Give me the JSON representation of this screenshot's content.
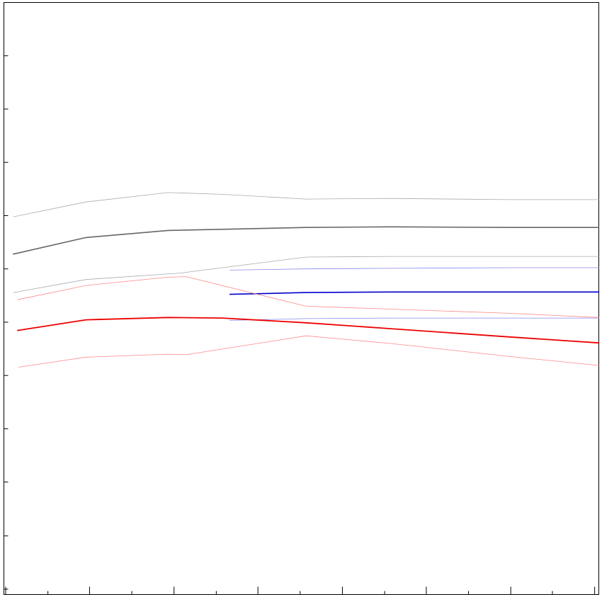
{
  "chart_data": {
    "type": "line",
    "title": "",
    "xlabel": "",
    "ylabel": "",
    "grid": false,
    "legend": "none",
    "xlim": [
      0,
      1
    ],
    "ylim": [
      0,
      1
    ],
    "x_major_ticks": [
      0.003,
      0.144,
      0.286,
      0.427,
      0.569,
      0.71,
      0.852,
      0.993
    ],
    "x_minor_ticks": [
      0.074,
      0.215,
      0.357,
      0.498,
      0.64,
      0.781,
      0.922
    ],
    "y_ticks": [
      0.009,
      0.099,
      0.19,
      0.28,
      0.37,
      0.46,
      0.55,
      0.64,
      0.73,
      0.82,
      0.91
    ],
    "series": [
      {
        "color": "#aaaaaa",
        "width": 0.8,
        "x": [
          0.016,
          0.138,
          0.276,
          0.367,
          0.508,
          0.65,
          0.85,
          1.0
        ],
        "y": [
          0.638,
          0.663,
          0.679,
          0.676,
          0.668,
          0.669,
          0.667,
          0.667
        ]
      },
      {
        "color": "#666666",
        "width": 1.6,
        "x": [
          0.016,
          0.138,
          0.276,
          0.508,
          0.65,
          0.85,
          1.0
        ],
        "y": [
          0.575,
          0.603,
          0.615,
          0.62,
          0.621,
          0.62,
          0.62
        ]
      },
      {
        "color": "#aaaaaa",
        "width": 0.8,
        "x": [
          0.016,
          0.138,
          0.296,
          0.508,
          0.65,
          0.85,
          1.0
        ],
        "y": [
          0.51,
          0.532,
          0.543,
          0.57,
          0.571,
          0.571,
          0.571
        ]
      },
      {
        "color": "#8888ee",
        "width": 0.8,
        "x": [
          0.38,
          0.508,
          0.65,
          0.85,
          1.0
        ],
        "y": [
          0.548,
          0.55,
          0.551,
          0.552,
          0.552
        ]
      },
      {
        "color": "#0000cc",
        "width": 1.6,
        "x": [
          0.38,
          0.508,
          0.65,
          0.85,
          1.0
        ],
        "y": [
          0.507,
          0.51,
          0.511,
          0.511,
          0.511
        ]
      },
      {
        "color": "#8888ee",
        "width": 0.8,
        "x": [
          0.38,
          0.508,
          0.65,
          0.85,
          1.0
        ],
        "y": [
          0.463,
          0.466,
          0.467,
          0.467,
          0.467
        ]
      },
      {
        "color": "#ff8888",
        "width": 0.8,
        "x": [
          0.023,
          0.138,
          0.276,
          0.306,
          0.508,
          0.65,
          0.85,
          1.0
        ],
        "y": [
          0.498,
          0.522,
          0.536,
          0.537,
          0.487,
          0.482,
          0.475,
          0.468
        ]
      },
      {
        "color": "#ee0000",
        "width": 1.8,
        "x": [
          0.023,
          0.138,
          0.276,
          0.367,
          0.508,
          0.65,
          0.85,
          1.0
        ],
        "y": [
          0.446,
          0.464,
          0.468,
          0.467,
          0.459,
          0.449,
          0.435,
          0.425
        ]
      },
      {
        "color": "#ff8888",
        "width": 0.8,
        "x": [
          0.025,
          0.138,
          0.276,
          0.306,
          0.508,
          0.65,
          0.85,
          1.0
        ],
        "y": [
          0.384,
          0.401,
          0.406,
          0.405,
          0.437,
          0.424,
          0.402,
          0.387
        ]
      }
    ]
  }
}
